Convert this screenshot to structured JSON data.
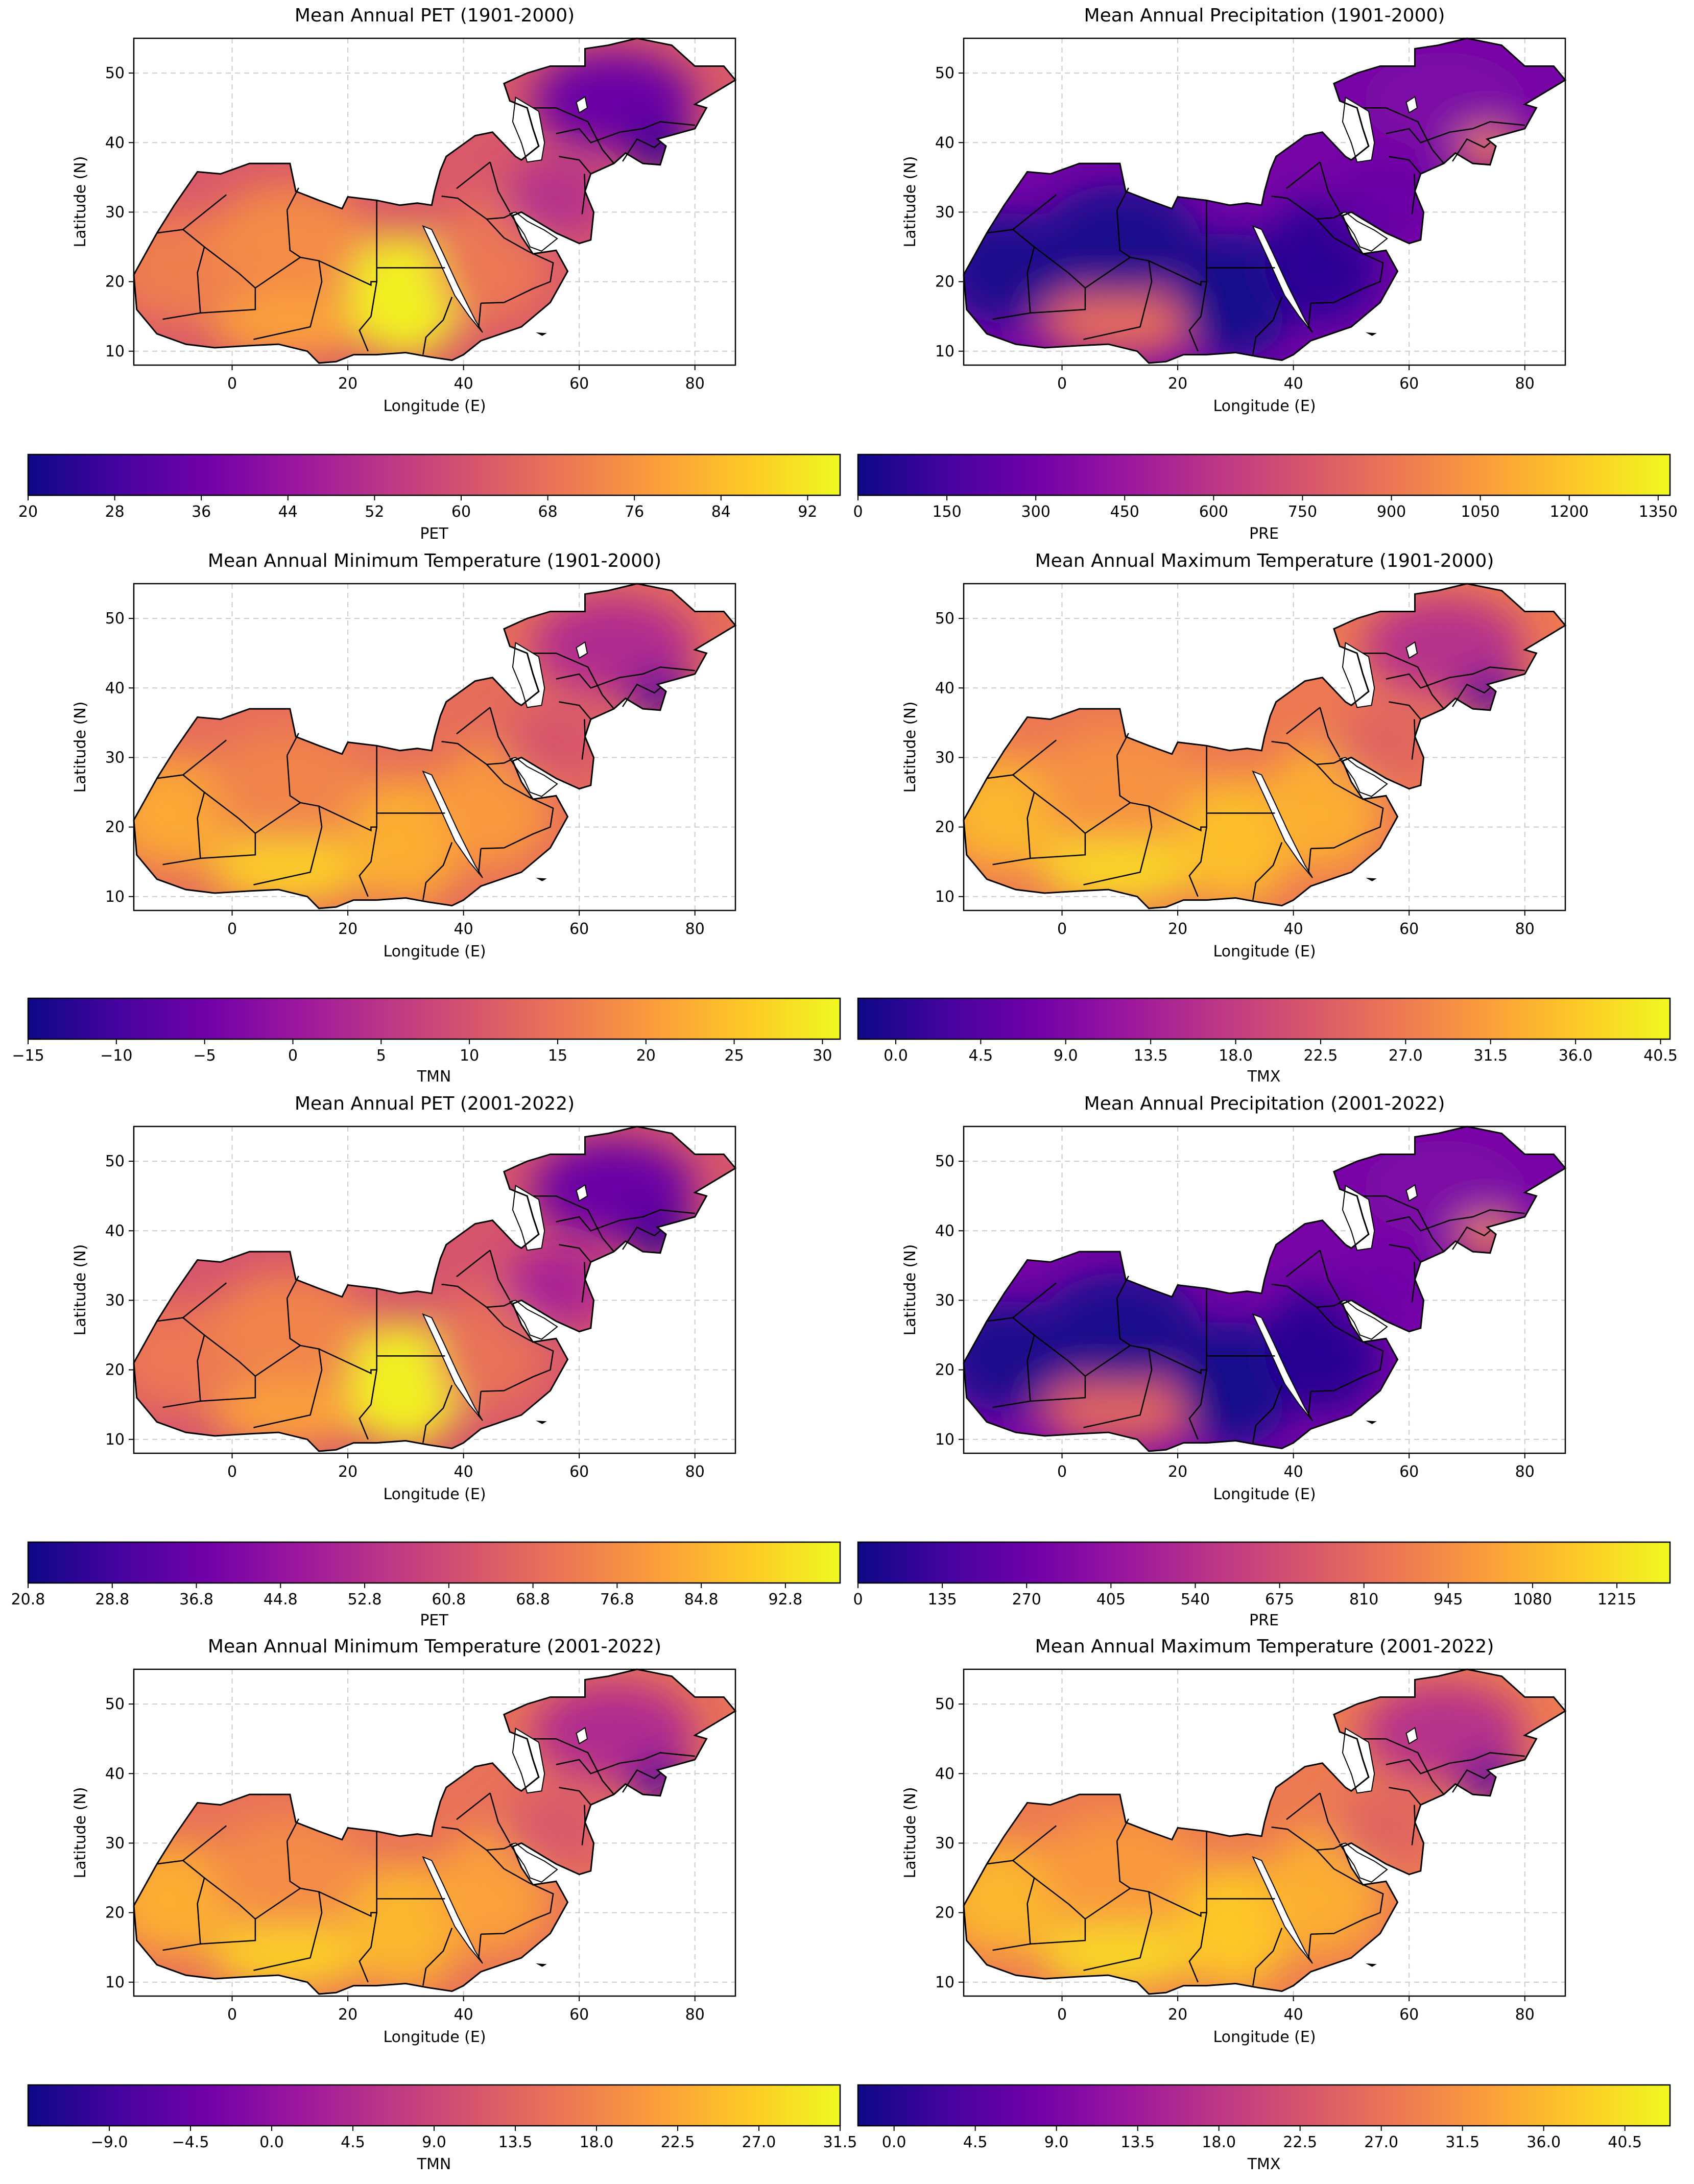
{
  "figure": {
    "colormap": [
      "#0d0887",
      "#46039f",
      "#7201a8",
      "#9c179e",
      "#bd3786",
      "#d8576b",
      "#ed7953",
      "#fb9f3a",
      "#fdca26",
      "#f0f921"
    ],
    "land_outline_color": "#000000",
    "grid_color": "#cccccc"
  },
  "chart_data": [
    {
      "type": "map",
      "title": "Mean Annual PET (1901-2000)",
      "xlabel": "Longitude (E)",
      "ylabel": "Latitude (N)",
      "xlim": [
        -17,
        87
      ],
      "ylim": [
        8,
        55
      ],
      "xticks": [
        "0",
        "20",
        "40",
        "60",
        "80"
      ],
      "yticks": [
        "10",
        "20",
        "30",
        "40",
        "50"
      ],
      "grid": true,
      "colorbar": {
        "label": "PET",
        "range": [
          20,
          95
        ],
        "ticks": [
          "20",
          "28",
          "36",
          "44",
          "52",
          "60",
          "68",
          "76",
          "84",
          "92"
        ]
      },
      "field": {
        "levels": {
          "west": 0.68,
          "sahel": 0.78,
          "sahara": 0.72,
          "nile": 0.98,
          "arabia": 0.66,
          "iran": 0.42,
          "central_asia": 0.2,
          "tibet": 0.05
        }
      }
    },
    {
      "type": "map",
      "title": "Mean Annual Precipitation (1901-2000)",
      "xlabel": "Longitude (E)",
      "ylabel": "Latitude (N)",
      "xlim": [
        -17,
        87
      ],
      "ylim": [
        8,
        55
      ],
      "xticks": [
        "0",
        "20",
        "40",
        "60",
        "80"
      ],
      "yticks": [
        "10",
        "20",
        "30",
        "40",
        "50"
      ],
      "grid": true,
      "colorbar": {
        "label": "PRE",
        "range": [
          0,
          1370
        ],
        "ticks": [
          "0",
          "150",
          "300",
          "450",
          "600",
          "750",
          "900",
          "1050",
          "1200",
          "1350"
        ]
      },
      "field": {
        "levels": {
          "west": 0.03,
          "sahel": 0.62,
          "sahara": 0.03,
          "nile": 0.02,
          "arabia": 0.06,
          "iran": 0.2,
          "central_asia": 0.25,
          "tibet": 0.68
        }
      }
    },
    {
      "type": "map",
      "title": "Mean Annual Minimum Temperature (1901-2000)",
      "xlabel": "Longitude (E)",
      "ylabel": "Latitude (N)",
      "xlim": [
        -17,
        87
      ],
      "ylim": [
        8,
        55
      ],
      "xticks": [
        "0",
        "20",
        "40",
        "60",
        "80"
      ],
      "yticks": [
        "10",
        "20",
        "30",
        "40",
        "50"
      ],
      "grid": true,
      "colorbar": {
        "label": "TMN",
        "range": [
          -15,
          31
        ],
        "ticks": [
          "−15",
          "−10",
          "−5",
          "0",
          "5",
          "10",
          "15",
          "20",
          "25",
          "30"
        ]
      },
      "field": {
        "levels": {
          "west": 0.8,
          "sahel": 0.9,
          "sahara": 0.7,
          "nile": 0.82,
          "arabia": 0.76,
          "iran": 0.55,
          "central_asia": 0.4,
          "tibet": 0.1
        }
      }
    },
    {
      "type": "map",
      "title": "Mean Annual Maximum Temperature (1901-2000)",
      "xlabel": "Longitude (E)",
      "ylabel": "Latitude (N)",
      "xlim": [
        -17,
        87
      ],
      "ylim": [
        8,
        55
      ],
      "xticks": [
        "0",
        "20",
        "40",
        "60",
        "80"
      ],
      "yticks": [
        "10",
        "20",
        "30",
        "40",
        "50"
      ],
      "grid": true,
      "colorbar": {
        "label": "TMX",
        "range": [
          -2,
          41
        ],
        "ticks": [
          "0.0",
          "4.5",
          "9.0",
          "13.5",
          "18.0",
          "22.5",
          "27.0",
          "31.5",
          "36.0",
          "40.5"
        ]
      },
      "field": {
        "levels": {
          "west": 0.84,
          "sahel": 0.92,
          "sahara": 0.74,
          "nile": 0.86,
          "arabia": 0.82,
          "iran": 0.6,
          "central_asia": 0.42,
          "tibet": 0.12
        }
      }
    },
    {
      "type": "map",
      "title": "Mean Annual PET (2001-2022)",
      "xlabel": "Longitude (E)",
      "ylabel": "Latitude (N)",
      "xlim": [
        -17,
        87
      ],
      "ylim": [
        8,
        55
      ],
      "xticks": [
        "0",
        "20",
        "40",
        "60",
        "80"
      ],
      "yticks": [
        "10",
        "20",
        "30",
        "40",
        "50"
      ],
      "grid": true,
      "colorbar": {
        "label": "PET",
        "range": [
          20.8,
          98
        ],
        "ticks": [
          "20.8",
          "28.8",
          "36.8",
          "44.8",
          "52.8",
          "60.8",
          "68.8",
          "76.8",
          "84.8",
          "92.8"
        ]
      },
      "field": {
        "levels": {
          "west": 0.66,
          "sahel": 0.78,
          "sahara": 0.7,
          "nile": 0.98,
          "arabia": 0.64,
          "iran": 0.38,
          "central_asia": 0.2,
          "tibet": 0.05
        }
      }
    },
    {
      "type": "map",
      "title": "Mean Annual Precipitation (2001-2022)",
      "xlabel": "Longitude (E)",
      "ylabel": "Latitude (N)",
      "xlim": [
        -17,
        87
      ],
      "ylim": [
        8,
        55
      ],
      "xticks": [
        "0",
        "20",
        "40",
        "60",
        "80"
      ],
      "yticks": [
        "10",
        "20",
        "30",
        "40",
        "50"
      ],
      "grid": true,
      "colorbar": {
        "label": "PRE",
        "range": [
          0,
          1300
        ],
        "ticks": [
          "0",
          "135",
          "270",
          "405",
          "540",
          "675",
          "810",
          "945",
          "1080",
          "1215"
        ]
      },
      "field": {
        "levels": {
          "west": 0.03,
          "sahel": 0.6,
          "sahara": 0.03,
          "nile": 0.02,
          "arabia": 0.05,
          "iran": 0.22,
          "central_asia": 0.25,
          "tibet": 0.7
        }
      }
    },
    {
      "type": "map",
      "title": "Mean Annual Minimum Temperature (2001-2022)",
      "xlabel": "Longitude (E)",
      "ylabel": "Latitude (N)",
      "xlim": [
        -17,
        87
      ],
      "ylim": [
        8,
        55
      ],
      "xticks": [
        "0",
        "20",
        "40",
        "60",
        "80"
      ],
      "yticks": [
        "10",
        "20",
        "30",
        "40",
        "50"
      ],
      "grid": true,
      "colorbar": {
        "label": "TMN",
        "range": [
          -13.5,
          31.5
        ],
        "ticks": [
          "−9.0",
          "−4.5",
          "0.0",
          "4.5",
          "9.0",
          "13.5",
          "18.0",
          "22.5",
          "27.0",
          "31.5"
        ]
      },
      "field": {
        "levels": {
          "west": 0.82,
          "sahel": 0.9,
          "sahara": 0.72,
          "nile": 0.84,
          "arabia": 0.78,
          "iran": 0.56,
          "central_asia": 0.4,
          "tibet": 0.1
        }
      }
    },
    {
      "type": "map",
      "title": "Mean Annual Maximum Temperature (2001-2022)",
      "xlabel": "Longitude (E)",
      "ylabel": "Latitude (N)",
      "xlim": [
        -17,
        87
      ],
      "ylim": [
        8,
        55
      ],
      "xticks": [
        "0",
        "20",
        "40",
        "60",
        "80"
      ],
      "yticks": [
        "10",
        "20",
        "30",
        "40",
        "50"
      ],
      "grid": true,
      "colorbar": {
        "label": "TMX",
        "range": [
          -2,
          43
        ],
        "ticks": [
          "0.0",
          "4.5",
          "9.0",
          "13.5",
          "18.0",
          "22.5",
          "27.0",
          "31.5",
          "36.0",
          "40.5"
        ]
      },
      "field": {
        "levels": {
          "west": 0.84,
          "sahel": 0.92,
          "sahara": 0.76,
          "nile": 0.88,
          "arabia": 0.82,
          "iran": 0.6,
          "central_asia": 0.42,
          "tibet": 0.12
        }
      }
    }
  ]
}
